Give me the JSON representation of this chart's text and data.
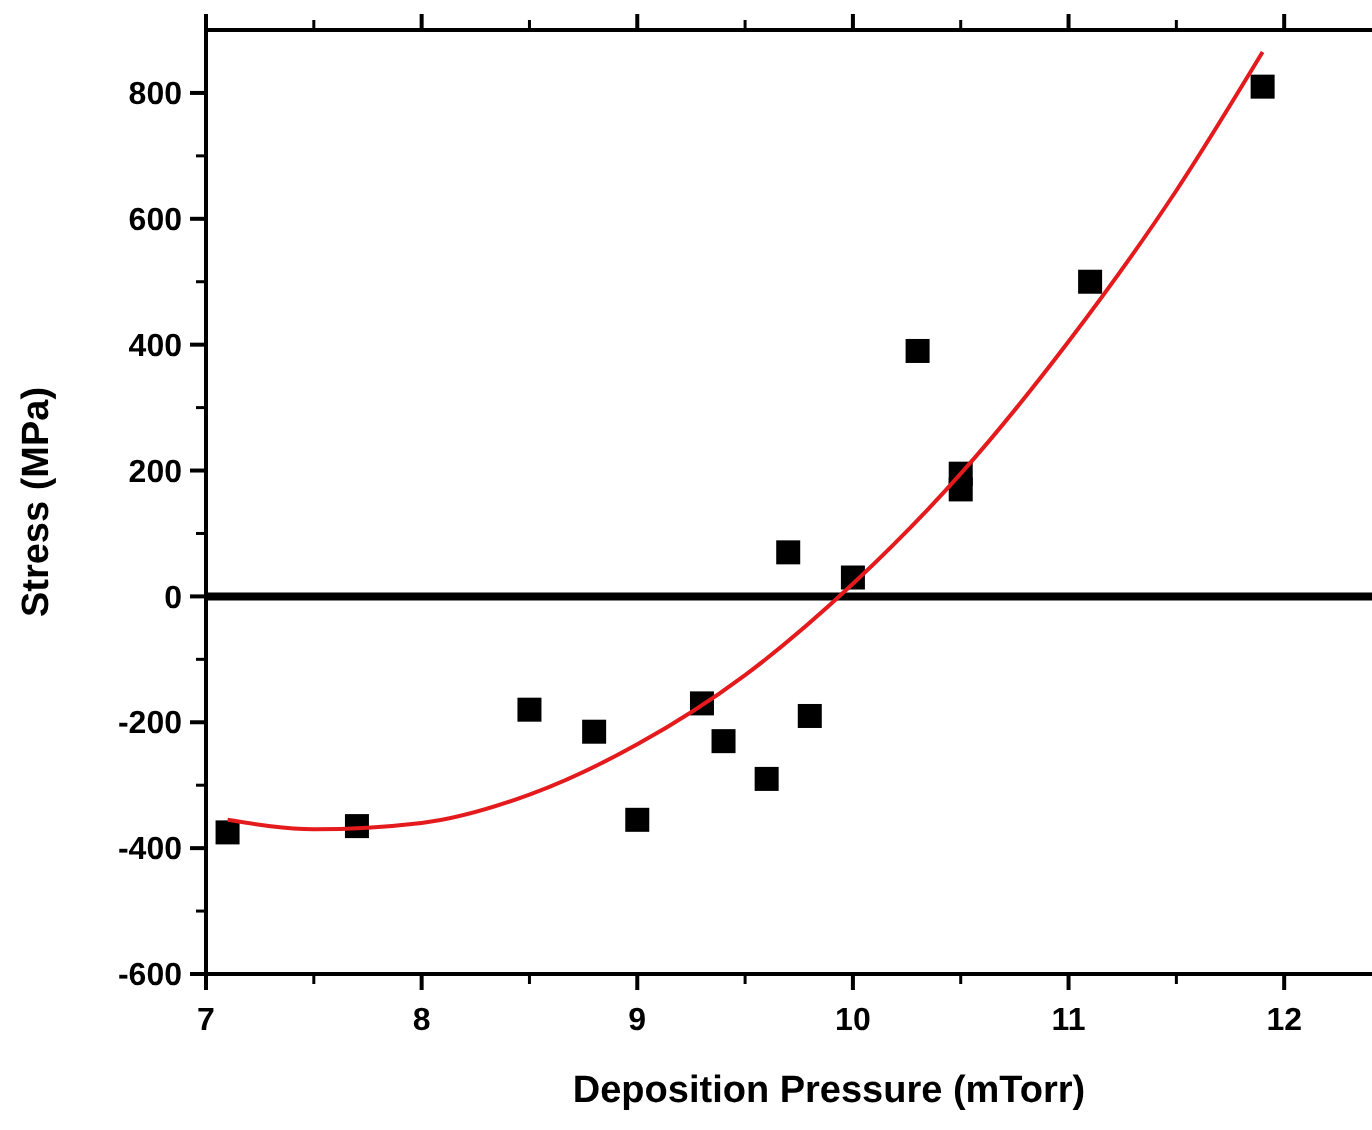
{
  "chart_data": {
    "type": "scatter",
    "xlabel": "Deposition Pressure (mTorr)",
    "ylabel": "Stress (MPa)",
    "xlim": [
      7,
      12.5
    ],
    "xticks": [
      7,
      8,
      9,
      10,
      11,
      12
    ],
    "ylim": [
      -600,
      900
    ],
    "yticks": [
      -600,
      -400,
      -200,
      0,
      200,
      400,
      600,
      800
    ],
    "grid": false,
    "series": [
      {
        "color": "#000000",
        "marker": "square",
        "x": [
          7.1,
          7.7,
          8.5,
          8.8,
          9.0,
          9.3,
          9.4,
          9.6,
          9.7,
          9.8,
          10.0,
          10.3,
          10.5,
          10.5,
          11.1,
          11.9
        ],
        "values": [
          -375,
          -365,
          -180,
          -215,
          -355,
          -170,
          -230,
          -290,
          70,
          -190,
          30,
          390,
          195,
          170,
          500,
          810
        ]
      },
      {
        "type": "line",
        "color": "#e41a1c",
        "line_style": "solid",
        "x": [
          7.1,
          7.5,
          8,
          8.5,
          9,
          9.5,
          10,
          10.5,
          11,
          11.5,
          11.9
        ],
        "values": [
          -355,
          -370,
          -360,
          -315,
          -235,
          -125,
          20,
          195,
          405,
          645,
          865
        ]
      }
    ],
    "ref_lines": [
      {
        "axis": "y",
        "value": 0,
        "color": "#000000",
        "line_style": "solid"
      }
    ]
  }
}
